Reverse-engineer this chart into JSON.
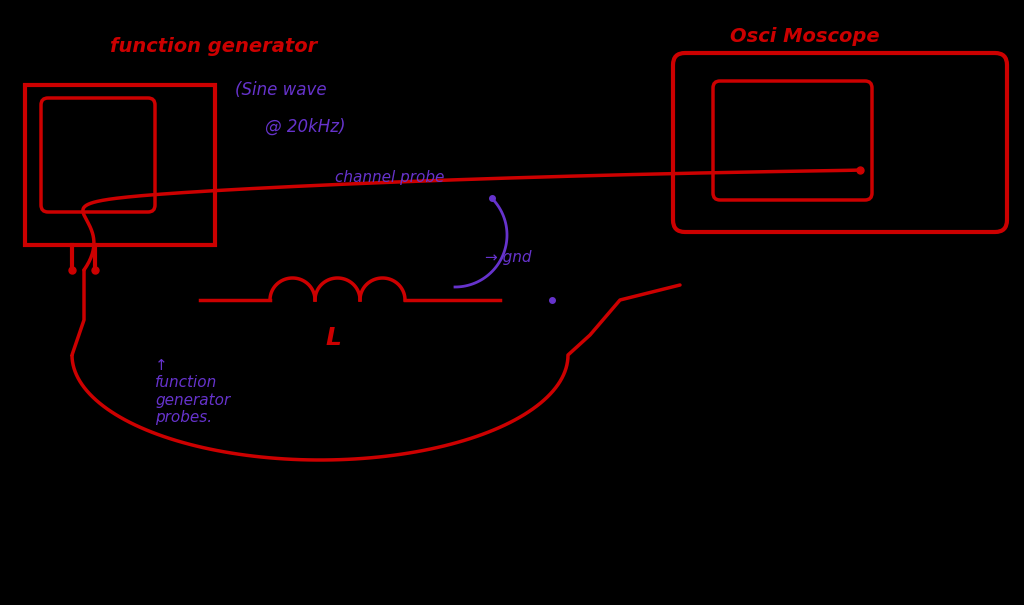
{
  "bg_color": "#000000",
  "red_color": "#cc0000",
  "purple_color": "#6633cc",
  "fg_label_func_gen": "function generator",
  "fg_label_sine1": "(Sine wave",
  "fg_label_sine2": "@ 20kHz)",
  "fg_label_osci": "Osci Moscope",
  "fg_label_channel_probe": "channel probe",
  "fg_label_gnd": "→ gnd",
  "fg_label_L": "L",
  "fg_label_bottom": "↑\nfunction\ngenerator\nprobes."
}
